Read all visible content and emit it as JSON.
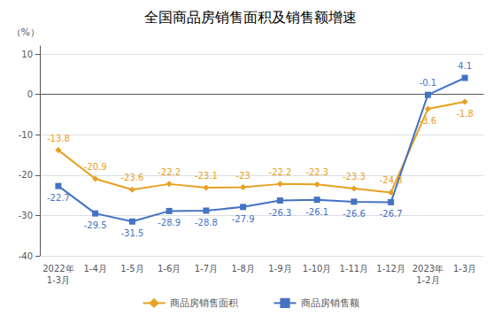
{
  "chart_data": {
    "type": "line",
    "title": "全国商品房销售面积及销售额增速",
    "ylabel": "（%）",
    "categories": [
      "2022年\n1-3月",
      "1-4月",
      "1-5月",
      "1-6月",
      "1-7月",
      "1-8月",
      "1-9月",
      "1-10月",
      "1-11月",
      "1-12月",
      "2023年\n1-2月",
      "1-3月"
    ],
    "series": [
      {
        "name": "商品房销售面积",
        "color": "#E8A020",
        "marker": "diamond",
        "values": [
          -13.8,
          -20.9,
          -23.6,
          -22.2,
          -23.1,
          -23.0,
          -22.2,
          -22.3,
          -23.3,
          -24.3,
          -3.6,
          -1.8
        ]
      },
      {
        "name": "商品房销售额",
        "color": "#4472C4",
        "marker": "square",
        "values": [
          -22.7,
          -29.5,
          -31.5,
          -28.9,
          -28.8,
          -27.9,
          -26.3,
          -26.1,
          -26.6,
          -26.7,
          -0.1,
          4.1
        ]
      }
    ],
    "ylim": [
      -40,
      12
    ],
    "yticks": [
      -40,
      -30,
      -20,
      -10,
      0,
      10
    ],
    "grid": true,
    "legend": "bottom",
    "data_labels": true
  }
}
